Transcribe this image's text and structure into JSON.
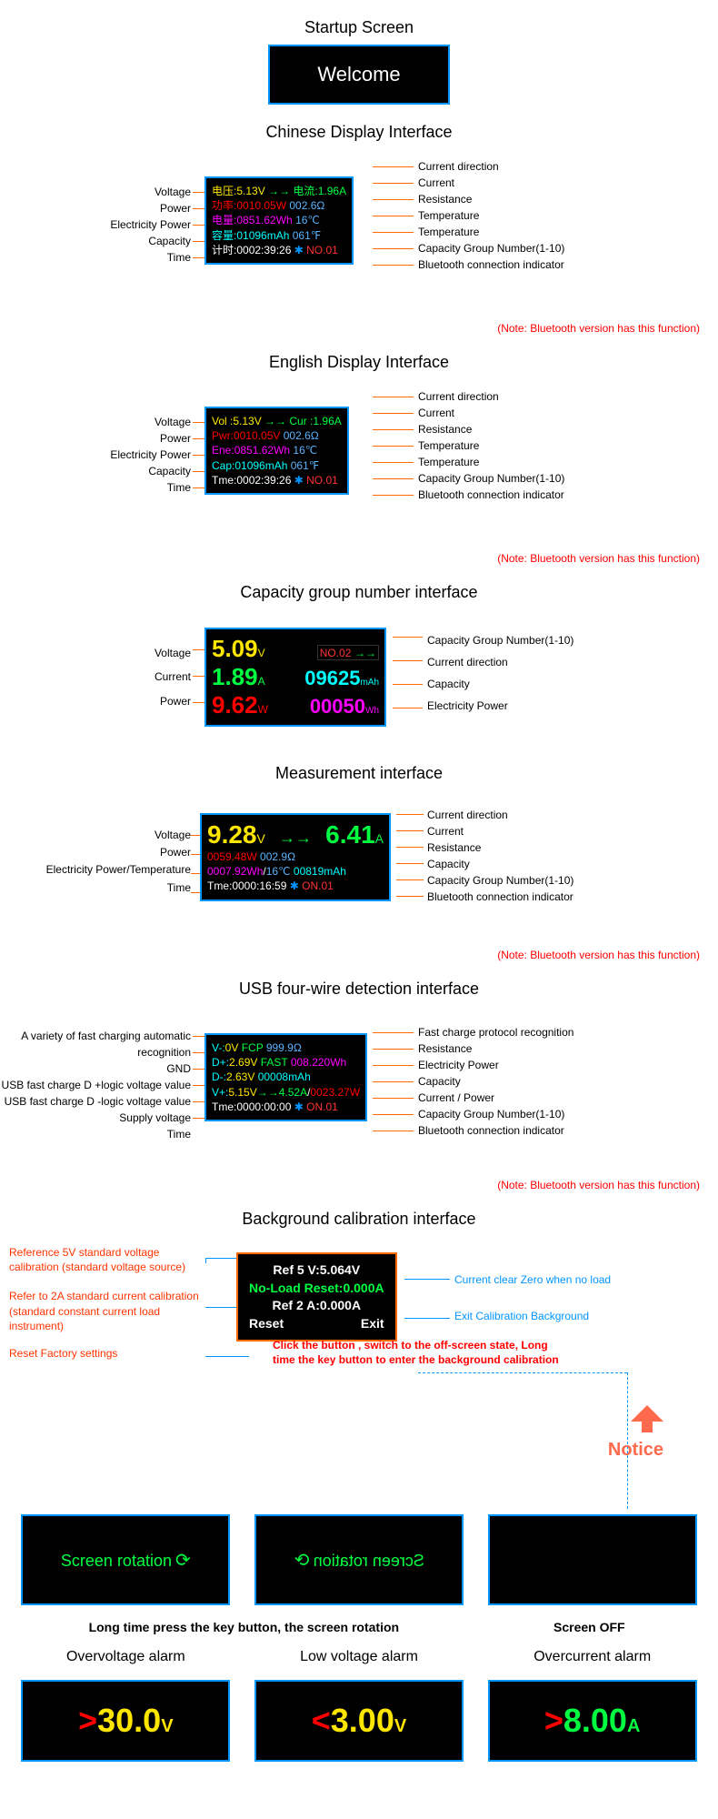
{
  "colors": {
    "blue_border": "#0095ff",
    "orange": "#ff6a00",
    "yellow": "#ffe600",
    "red": "#ff0000",
    "magenta": "#ff00ff",
    "cyan": "#00ffff",
    "green": "#00ff41",
    "white": "#ffffff",
    "lightblue": "#5ab4ff",
    "red2": "#ff3333"
  },
  "startup": {
    "title": "Startup Screen",
    "text": "Welcome"
  },
  "chinese": {
    "title": "Chinese Display Interface",
    "left": [
      "Voltage",
      "Power",
      "Electricity Power",
      "Capacity",
      "Time"
    ],
    "right": [
      "Current direction",
      "Current",
      "Resistance",
      "Temperature",
      "Temperature",
      "Capacity Group Number(1-10)",
      "Bluetooth connection indicator"
    ],
    "note": "(Note: Bluetooth version has this function)",
    "rows": [
      [
        {
          "t": "电压:",
          "c": "#ffe600"
        },
        {
          "t": "5.13V",
          "c": "#ffe600"
        },
        {
          "t": " →→ ",
          "c": "#00ff41"
        },
        {
          "t": "电流:",
          "c": "#00ff41"
        },
        {
          "t": "1.96A",
          "c": "#00ff41"
        }
      ],
      [
        {
          "t": "功率:",
          "c": "#ff0000"
        },
        {
          "t": "0010.05W",
          "c": "#ff0000"
        },
        {
          "t": "       002.6Ω",
          "c": "#5ab4ff"
        }
      ],
      [
        {
          "t": "电量:",
          "c": "#ff00ff"
        },
        {
          "t": "0851.62Wh",
          "c": "#ff00ff"
        },
        {
          "t": "       16℃",
          "c": "#5ab4ff"
        }
      ],
      [
        {
          "t": "容量:",
          "c": "#00ffff"
        },
        {
          "t": "01096mAh",
          "c": "#00ffff"
        },
        {
          "t": "      061℉",
          "c": "#5ab4ff"
        }
      ],
      [
        {
          "t": "计时:",
          "c": "#ffffff"
        },
        {
          "t": "0002:39:26",
          "c": "#ffffff"
        },
        {
          "t": " ✱ ",
          "c": "#0095ff"
        },
        {
          "t": "NO.01",
          "c": "#ff3333"
        }
      ]
    ]
  },
  "english": {
    "title": "English Display Interface",
    "left": [
      "Voltage",
      "Power",
      "Electricity Power",
      "Capacity",
      "Time"
    ],
    "right": [
      "Current direction",
      "Current",
      "Resistance",
      "Temperature",
      "Temperature",
      "Capacity Group Number(1-10)",
      "Bluetooth connection indicator"
    ],
    "note": "(Note: Bluetooth version has this function)",
    "rows": [
      [
        {
          "t": "Vol :",
          "c": "#ffe600"
        },
        {
          "t": "5.13V",
          "c": "#ffe600"
        },
        {
          "t": " →→ ",
          "c": "#00ff41"
        },
        {
          "t": "Cur :",
          "c": "#00ff41"
        },
        {
          "t": "1.96A",
          "c": "#00ff41"
        }
      ],
      [
        {
          "t": "Pwr:",
          "c": "#ff0000"
        },
        {
          "t": "0010.05V",
          "c": "#ff0000"
        },
        {
          "t": "       002.6Ω",
          "c": "#5ab4ff"
        }
      ],
      [
        {
          "t": "Ene:",
          "c": "#ff00ff"
        },
        {
          "t": "0851.62Wh",
          "c": "#ff00ff"
        },
        {
          "t": "       16℃",
          "c": "#5ab4ff"
        }
      ],
      [
        {
          "t": "Cap:",
          "c": "#00ffff"
        },
        {
          "t": "01096mAh",
          "c": "#00ffff"
        },
        {
          "t": "      061℉",
          "c": "#5ab4ff"
        }
      ],
      [
        {
          "t": "Tme:",
          "c": "#ffffff"
        },
        {
          "t": "0002:39:26",
          "c": "#ffffff"
        },
        {
          "t": " ✱ ",
          "c": "#0095ff"
        },
        {
          "t": "NO.01",
          "c": "#ff3333"
        }
      ]
    ]
  },
  "cap_group": {
    "title": "Capacity group number interface",
    "left": [
      "Voltage",
      "Current",
      "Power"
    ],
    "right": [
      "Capacity Group Number(1-10)",
      "Current direction",
      "Capacity",
      "Electricity Power"
    ],
    "cells": {
      "voltage": {
        "v": "5.09",
        "u": "V",
        "c": "#ffe600"
      },
      "no": {
        "v": "NO.02",
        "c": "#ff3333"
      },
      "arrow": {
        "v": "→→",
        "c": "#00ff41"
      },
      "current": {
        "v": "1.89",
        "u": "A",
        "c": "#00ff41"
      },
      "capacity": {
        "v": "09625",
        "u": "mAh",
        "c": "#00ffff"
      },
      "power": {
        "v": "9.62",
        "u": "W",
        "c": "#ff0000"
      },
      "energy": {
        "v": "00050",
        "u": "Wh",
        "c": "#ff00ff"
      }
    }
  },
  "measure": {
    "title": "Measurement interface",
    "left": [
      "Voltage",
      "Power",
      "Electricity Power/Temperature",
      "Time"
    ],
    "right": [
      "Current direction",
      "Current",
      "Resistance",
      "Capacity",
      "Capacity Group Number(1-10)",
      "Bluetooth connection indicator"
    ],
    "note": "(Note: Bluetooth version has this function)",
    "top": {
      "voltage": "9.28",
      "vU": "V",
      "arrow": "→→",
      "current": "6.41",
      "cU": "A",
      "vc": "#ffe600",
      "cc": "#00ff41"
    },
    "r1": [
      {
        "t": "0059.48W",
        "c": "#ff0000"
      },
      {
        "t": "               002.9Ω",
        "c": "#5ab4ff"
      }
    ],
    "r2": [
      {
        "t": "0007.92Wh",
        "c": "#ff00ff"
      },
      {
        "t": "/",
        "c": "#fff"
      },
      {
        "t": "16℃",
        "c": "#5ab4ff"
      },
      {
        "t": "     00819mAh",
        "c": "#00ffff"
      }
    ],
    "r3": [
      {
        "t": "Tme:0000:16:59",
        "c": "#ffffff"
      },
      {
        "t": "  ✱ ",
        "c": "#0095ff"
      },
      {
        "t": " ON.01",
        "c": "#ff3333"
      }
    ]
  },
  "usb": {
    "title": "USB four-wire detection interface",
    "left": [
      "A variety of fast charging automatic recognition",
      "GND",
      "USB fast charge D +logic voltage value",
      "USB fast charge D -logic voltage value",
      "Supply voltage",
      "Time"
    ],
    "right": [
      "Fast charge protocol recognition",
      "Resistance",
      "Electricity Power",
      "Capacity",
      "Current / Power",
      "Capacity Group Number(1-10)",
      "Bluetooth connection indicator"
    ],
    "note": "(Note: Bluetooth version has this function)",
    "rows": [
      [
        {
          "t": "V-:",
          "c": "#00ffff"
        },
        {
          "t": "0V",
          "c": "#ffe600"
        },
        {
          "t": "  FCP",
          "c": "#00ff41"
        },
        {
          "t": "        999.9Ω",
          "c": "#5ab4ff"
        }
      ],
      [
        {
          "t": "D+:",
          "c": "#00ffff"
        },
        {
          "t": "2.69V",
          "c": "#ffe600"
        },
        {
          "t": "  FAST",
          "c": "#00ff41"
        },
        {
          "t": "  008.220Wh",
          "c": "#ff00ff"
        }
      ],
      [
        {
          "t": "D-:",
          "c": "#00ffff"
        },
        {
          "t": "2.63V",
          "c": "#ffe600"
        },
        {
          "t": "           00008mAh",
          "c": "#00ffff"
        }
      ],
      [
        {
          "t": "V+:",
          "c": "#00ffff"
        },
        {
          "t": "5.15V",
          "c": "#ffe600"
        },
        {
          "t": "→→",
          "c": "#00ff41"
        },
        {
          "t": "4.52A",
          "c": "#00ff41"
        },
        {
          "t": "/",
          "c": "#fff"
        },
        {
          "t": "0023.27W",
          "c": "#ff0000"
        }
      ],
      [
        {
          "t": "Tme:",
          "c": "#ffffff"
        },
        {
          "t": "0000:00:00",
          "c": "#ffffff"
        },
        {
          "t": "  ✱ ",
          "c": "#0095ff"
        },
        {
          "t": "ON.01",
          "c": "#ff3333"
        }
      ]
    ]
  },
  "calib": {
    "title": "Background calibration interface",
    "left": [
      "Reference 5V standard voltage calibration (standard voltage source)",
      "Refer to 2A standard current calibration (standard constant current load instrument)",
      "Reset Factory settings"
    ],
    "right": [
      "Current clear Zero when no load",
      "Exit Calibration Background"
    ],
    "rows": {
      "r1": {
        "t": "Ref 5 V:5.064V",
        "c": "#ffffff"
      },
      "r2": {
        "t": "No-Load Reset:0.000A",
        "c": "#00ff41"
      },
      "r3": {
        "t": "Ref 2 A:0.000A",
        "c": "#ffffff"
      },
      "r4a": {
        "t": "Reset",
        "c": "#ffffff"
      },
      "r4b": {
        "t": "Exit",
        "c": "#ffffff"
      }
    },
    "bottom_note": "Click the button , switch to the off-screen state, Long time the key button to enter the background calibration",
    "notice": "Notice",
    "notice_color": "#ff6a4d"
  },
  "screens": {
    "rot1": "Screen rotation",
    "rot2": "Screen rotation",
    "off_title": "Screen OFF",
    "caption": "Long time press the key button, the screen rotation"
  },
  "alarms": [
    {
      "title": "Overvoltage alarm",
      "sym": ">",
      "val": "30.0",
      "u": "V",
      "sc": "#ff0000",
      "vc": "#ffe600"
    },
    {
      "title": "Low voltage alarm",
      "sym": "<",
      "val": "3.00",
      "u": "V",
      "sc": "#ff0000",
      "vc": "#ffe600"
    },
    {
      "title": "Overcurrent alarm",
      "sym": ">",
      "val": "8.00",
      "u": "A",
      "sc": "#ff0000",
      "vc": "#00ff41"
    }
  ]
}
